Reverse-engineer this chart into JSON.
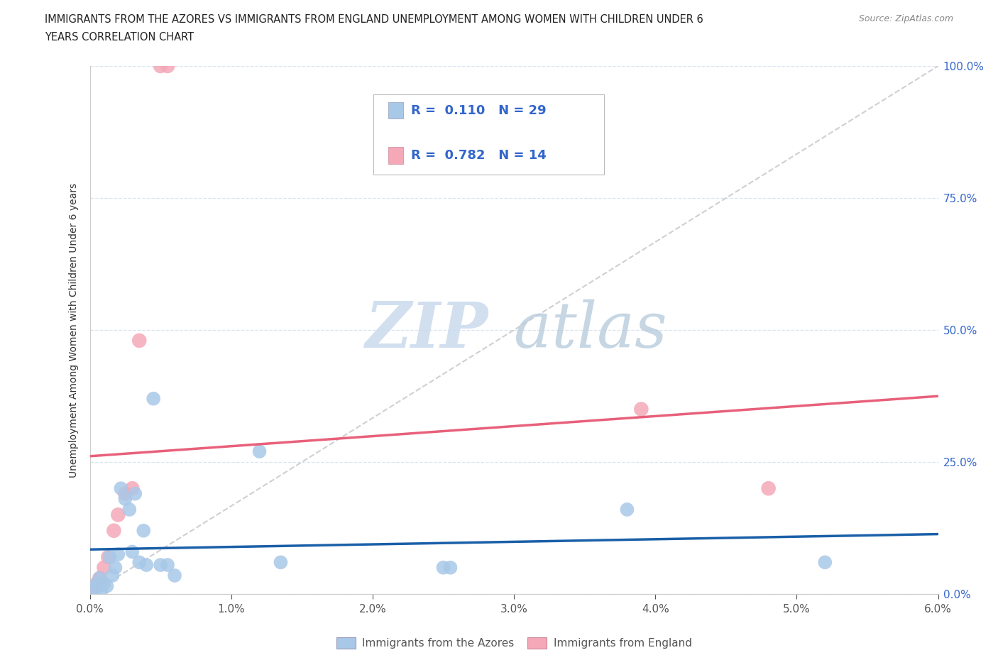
{
  "title_line1": "IMMIGRANTS FROM THE AZORES VS IMMIGRANTS FROM ENGLAND UNEMPLOYMENT AMONG WOMEN WITH CHILDREN UNDER 6",
  "title_line2": "YEARS CORRELATION CHART",
  "source": "Source: ZipAtlas.com",
  "ylabel_label": "Unemployment Among Women with Children Under 6 years",
  "azores_label": "Immigrants from the Azores",
  "england_label": "Immigrants from England",
  "R_azores": 0.11,
  "N_azores": 29,
  "R_england": 0.782,
  "N_england": 14,
  "azores_color": "#a8c8e8",
  "england_color": "#f4a8b8",
  "azores_line_color": "#1a5fa8",
  "england_line_color": "#e8607a",
  "ref_line_color": "#c8c8c8",
  "grid_color": "#d8e4f0",
  "background_color": "#ffffff",
  "legend_text_color": "#3366cc",
  "title_color": "#222222",
  "xlim": [
    0.0,
    6.0
  ],
  "ylim": [
    0.0,
    100.0
  ],
  "yticks": [
    0.0,
    25.0,
    50.0,
    75.0,
    100.0
  ],
  "xticks": [
    0.0,
    1.0,
    2.0,
    3.0,
    4.0,
    5.0,
    6.0
  ],
  "azores_x": [
    0.03,
    0.05,
    0.06,
    0.07,
    0.08,
    0.1,
    0.12,
    0.14,
    0.16,
    0.18,
    0.2,
    0.22,
    0.25,
    0.28,
    0.3,
    0.32,
    0.35,
    0.38,
    0.4,
    0.45,
    0.5,
    0.55,
    0.6,
    1.2,
    1.35,
    2.5,
    2.55,
    3.8,
    5.2
  ],
  "azores_y": [
    1.0,
    2.0,
    1.5,
    3.0,
    0.5,
    2.0,
    1.5,
    7.0,
    3.5,
    5.0,
    7.5,
    20.0,
    18.0,
    16.0,
    8.0,
    19.0,
    6.0,
    12.0,
    5.5,
    37.0,
    5.5,
    5.5,
    3.5,
    27.0,
    6.0,
    5.0,
    5.0,
    16.0,
    6.0
  ],
  "england_x": [
    0.03,
    0.05,
    0.07,
    0.1,
    0.13,
    0.17,
    0.2,
    0.25,
    0.3,
    0.35,
    0.5,
    0.55,
    3.9,
    4.8
  ],
  "england_y": [
    1.0,
    2.0,
    3.0,
    5.0,
    7.0,
    12.0,
    15.0,
    19.0,
    20.0,
    48.0,
    100.0,
    100.0,
    35.0,
    20.0
  ]
}
